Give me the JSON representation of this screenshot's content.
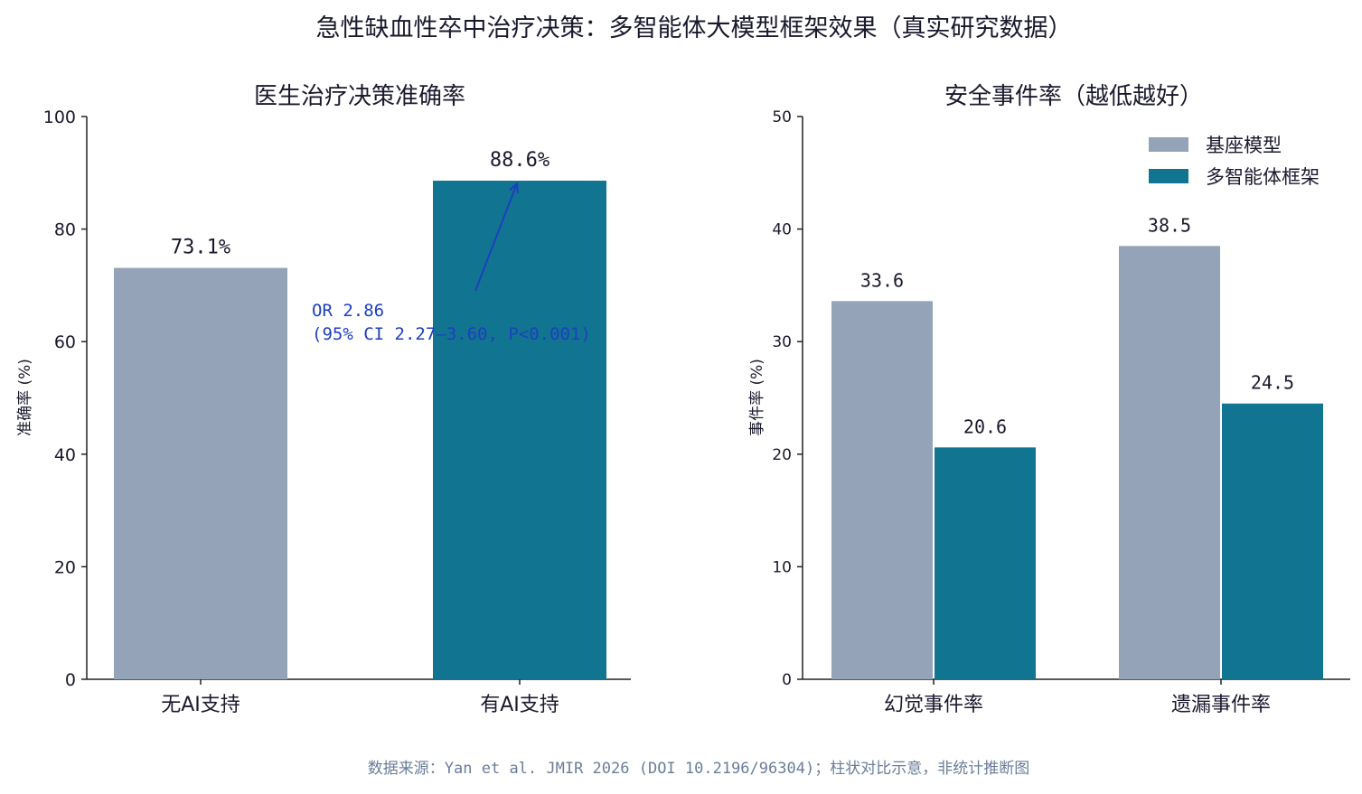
{
  "title": "急性缺血性卒中治疗决策：多智能体大模型框架效果（真实研究数据）",
  "footnote": "数据来源：Yan et al. JMIR 2026 (DOI 10.2196/96304)；柱状对比示意，非统计推断图",
  "colors": {
    "baseline": "#94a3b8",
    "framework": "#117591",
    "annotation": "#1e3fbf",
    "footnote": "#6b7d99",
    "text": "#1a1a2e"
  },
  "chart_data": [
    {
      "type": "bar",
      "title": "医生治疗决策准确率",
      "ylabel": "准确率 (%)",
      "ylim": [
        0,
        100
      ],
      "yticks": [
        "0",
        "20",
        "40",
        "60",
        "80",
        "100"
      ],
      "categories": [
        "无AI支持",
        "有AI支持"
      ],
      "values": [
        73.1,
        88.6
      ],
      "value_labels": [
        "73.1%",
        "88.6%"
      ],
      "bar_colors": [
        "#94a3b8",
        "#117591"
      ],
      "annotation": {
        "line1": "OR 2.86",
        "line2": "(95% CI 2.27–3.60, P<0.001)"
      }
    },
    {
      "type": "bar",
      "title": "安全事件率（越低越好）",
      "ylabel": "事件率 (%)",
      "ylim": [
        0,
        50
      ],
      "yticks": [
        "0",
        "10",
        "20",
        "30",
        "40",
        "50"
      ],
      "categories": [
        "幻觉事件率",
        "遗漏事件率"
      ],
      "legend_position": "top-right",
      "series": [
        {
          "name": "基座模型",
          "values": [
            33.6,
            38.5
          ],
          "value_labels": [
            "33.6",
            "38.5"
          ],
          "color": "#94a3b8"
        },
        {
          "name": "多智能体框架",
          "values": [
            20.6,
            24.5
          ],
          "value_labels": [
            "20.6",
            "24.5"
          ],
          "color": "#117591"
        }
      ]
    }
  ]
}
